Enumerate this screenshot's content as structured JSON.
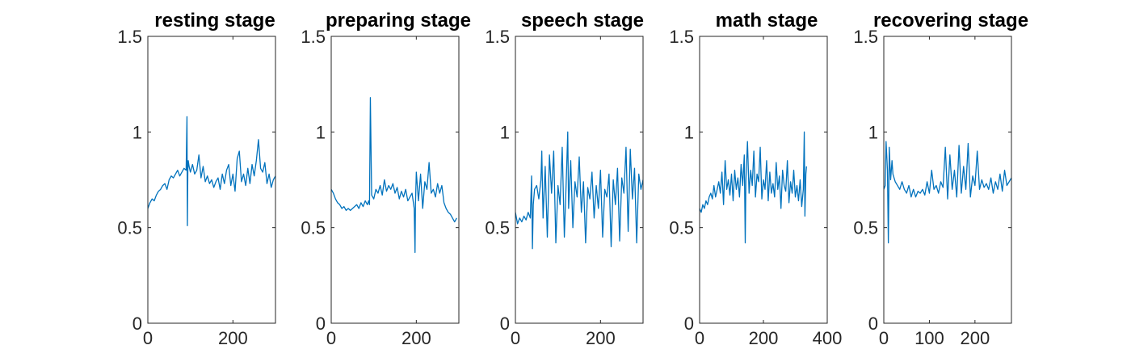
{
  "chart_data": [
    {
      "type": "line",
      "title": "resting stage",
      "xlim": [
        0,
        300
      ],
      "ylim": [
        0,
        1.5
      ],
      "xticks": [
        0,
        200
      ],
      "xtick_labels": [
        "0",
        "200"
      ],
      "yticks": [
        0,
        0.5,
        1,
        1.5
      ],
      "ytick_labels": [
        "0",
        "0.5",
        "1",
        "1.5"
      ],
      "line_color": "#0072BD",
      "series": [
        {
          "x": [
            0,
            5,
            10,
            15,
            20,
            25,
            30,
            35,
            40,
            45,
            50,
            55,
            60,
            65,
            70,
            75,
            80,
            85,
            90,
            92,
            93,
            94,
            95,
            97,
            100,
            105,
            110,
            115,
            120,
            125,
            130,
            135,
            140,
            145,
            150,
            155,
            160,
            165,
            170,
            175,
            180,
            185,
            190,
            195,
            200,
            205,
            210,
            215,
            220,
            225,
            230,
            235,
            240,
            245,
            250,
            255,
            260,
            265,
            270,
            275,
            280,
            285,
            290,
            295,
            300
          ],
          "y": [
            0.6,
            0.63,
            0.65,
            0.64,
            0.67,
            0.69,
            0.7,
            0.72,
            0.73,
            0.7,
            0.75,
            0.77,
            0.76,
            0.78,
            0.8,
            0.77,
            0.79,
            0.81,
            0.8,
            1.08,
            0.51,
            0.8,
            0.85,
            0.82,
            0.79,
            0.83,
            0.78,
            0.8,
            0.88,
            0.76,
            0.82,
            0.74,
            0.77,
            0.73,
            0.75,
            0.71,
            0.74,
            0.76,
            0.7,
            0.78,
            0.73,
            0.8,
            0.83,
            0.72,
            0.78,
            0.69,
            0.86,
            0.9,
            0.74,
            0.78,
            0.72,
            0.81,
            0.73,
            0.83,
            0.77,
            0.85,
            0.96,
            0.81,
            0.79,
            0.84,
            0.73,
            0.78,
            0.71,
            0.75,
            0.77
          ]
        }
      ]
    },
    {
      "type": "line",
      "title": "preparing stage",
      "xlim": [
        0,
        300
      ],
      "ylim": [
        0,
        1.5
      ],
      "xticks": [
        0,
        200
      ],
      "xtick_labels": [
        "0",
        "200"
      ],
      "yticks": [
        0,
        0.5,
        1,
        1.5
      ],
      "ytick_labels": [
        "0",
        "0.5",
        "1",
        "1.5"
      ],
      "line_color": "#0072BD",
      "series": [
        {
          "x": [
            0,
            5,
            10,
            15,
            20,
            25,
            30,
            35,
            40,
            45,
            50,
            55,
            60,
            65,
            70,
            75,
            80,
            85,
            88,
            90,
            92,
            95,
            100,
            105,
            110,
            115,
            120,
            125,
            130,
            135,
            140,
            145,
            150,
            155,
            160,
            165,
            170,
            175,
            180,
            185,
            190,
            195,
            197,
            198,
            200,
            205,
            210,
            215,
            220,
            225,
            230,
            235,
            240,
            245,
            250,
            255,
            260,
            265,
            270,
            275,
            280,
            285,
            290,
            295
          ],
          "y": [
            0.7,
            0.68,
            0.65,
            0.63,
            0.62,
            0.6,
            0.61,
            0.59,
            0.6,
            0.59,
            0.6,
            0.61,
            0.62,
            0.6,
            0.63,
            0.61,
            0.64,
            0.62,
            0.64,
            0.62,
            1.18,
            0.67,
            0.65,
            0.7,
            0.68,
            0.72,
            0.67,
            0.75,
            0.69,
            0.72,
            0.7,
            0.73,
            0.68,
            0.71,
            0.65,
            0.69,
            0.66,
            0.7,
            0.64,
            0.66,
            0.68,
            0.6,
            0.37,
            0.62,
            0.79,
            0.64,
            0.78,
            0.6,
            0.74,
            0.7,
            0.84,
            0.68,
            0.7,
            0.66,
            0.73,
            0.68,
            0.72,
            0.63,
            0.6,
            0.58,
            0.57,
            0.55,
            0.53,
            0.55
          ]
        }
      ]
    },
    {
      "type": "line",
      "title": "speech stage",
      "xlim": [
        0,
        300
      ],
      "ylim": [
        0,
        1.5
      ],
      "xticks": [
        0,
        200
      ],
      "xtick_labels": [
        "0",
        "200"
      ],
      "yticks": [
        0,
        0.5,
        1,
        1.5
      ],
      "ytick_labels": [
        "0",
        "0.5",
        "1",
        "1.5"
      ],
      "line_color": "#0072BD",
      "series": [
        {
          "x": [
            0,
            5,
            10,
            15,
            20,
            25,
            30,
            35,
            38,
            40,
            42,
            45,
            50,
            55,
            60,
            62,
            65,
            70,
            75,
            80,
            85,
            90,
            95,
            100,
            105,
            110,
            115,
            120,
            123,
            125,
            130,
            135,
            140,
            145,
            150,
            155,
            160,
            165,
            170,
            175,
            180,
            185,
            190,
            195,
            200,
            205,
            210,
            215,
            220,
            225,
            230,
            235,
            240,
            245,
            250,
            255,
            260,
            265,
            270,
            275,
            280,
            285,
            290,
            295,
            300
          ],
          "y": [
            0.58,
            0.52,
            0.55,
            0.53,
            0.56,
            0.54,
            0.58,
            0.55,
            0.77,
            0.39,
            0.62,
            0.7,
            0.72,
            0.65,
            0.75,
            0.9,
            0.55,
            0.82,
            0.45,
            0.88,
            0.68,
            0.9,
            0.42,
            0.72,
            0.62,
            0.92,
            0.45,
            0.78,
            1.0,
            0.6,
            0.85,
            0.5,
            0.74,
            0.66,
            0.87,
            0.58,
            0.74,
            0.42,
            0.71,
            0.65,
            0.79,
            0.55,
            0.72,
            0.6,
            0.8,
            0.45,
            0.7,
            0.66,
            0.78,
            0.4,
            0.75,
            0.62,
            0.81,
            0.43,
            0.76,
            0.68,
            0.92,
            0.48,
            0.91,
            0.65,
            0.81,
            0.42,
            0.78,
            0.7,
            0.75
          ]
        }
      ]
    },
    {
      "type": "line",
      "title": "math stage",
      "xlim": [
        0,
        400
      ],
      "ylim": [
        0,
        1.5
      ],
      "xticks": [
        0,
        200,
        400
      ],
      "xtick_labels": [
        "0",
        "200",
        "400"
      ],
      "yticks": [
        0,
        0.5,
        1,
        1.5
      ],
      "ytick_labels": [
        "0",
        "0.5",
        "1",
        "1.5"
      ],
      "line_color": "#0072BD",
      "series": [
        {
          "x": [
            0,
            5,
            10,
            15,
            20,
            25,
            30,
            35,
            40,
            45,
            50,
            55,
            60,
            65,
            70,
            75,
            80,
            85,
            90,
            95,
            100,
            105,
            110,
            115,
            120,
            125,
            130,
            135,
            140,
            143,
            145,
            150,
            155,
            160,
            165,
            170,
            175,
            180,
            185,
            190,
            195,
            200,
            205,
            210,
            215,
            220,
            225,
            230,
            235,
            240,
            245,
            250,
            255,
            260,
            265,
            270,
            275,
            280,
            285,
            290,
            295,
            300,
            305,
            310,
            315,
            320,
            325,
            328,
            330,
            333,
            335
          ],
          "y": [
            0.6,
            0.58,
            0.62,
            0.6,
            0.64,
            0.62,
            0.66,
            0.68,
            0.65,
            0.72,
            0.66,
            0.7,
            0.74,
            0.68,
            0.79,
            0.62,
            0.85,
            0.7,
            0.75,
            0.67,
            0.78,
            0.64,
            0.8,
            0.7,
            0.76,
            0.66,
            0.83,
            0.72,
            0.88,
            0.42,
            0.74,
            0.95,
            0.68,
            0.8,
            0.72,
            0.9,
            0.66,
            0.78,
            0.74,
            0.92,
            0.65,
            0.75,
            0.7,
            0.85,
            0.64,
            0.79,
            0.68,
            0.73,
            0.66,
            0.84,
            0.7,
            0.77,
            0.6,
            0.8,
            0.72,
            0.69,
            0.85,
            0.63,
            0.74,
            0.68,
            0.8,
            0.66,
            0.72,
            0.64,
            0.75,
            0.61,
            0.7,
            1.0,
            0.56,
            0.78,
            0.82
          ]
        }
      ]
    },
    {
      "type": "line",
      "title": "recovering stage",
      "xlim": [
        0,
        280
      ],
      "ylim": [
        0,
        1.5
      ],
      "xticks": [
        0,
        100,
        200
      ],
      "xtick_labels": [
        "0",
        "100",
        "200"
      ],
      "yticks": [
        0,
        0.5,
        1,
        1.5
      ],
      "ytick_labels": [
        "0",
        "0.5",
        "1",
        "1.5"
      ],
      "line_color": "#0072BD",
      "series": [
        {
          "x": [
            0,
            3,
            5,
            8,
            10,
            12,
            15,
            18,
            20,
            25,
            30,
            35,
            40,
            45,
            50,
            55,
            60,
            65,
            70,
            75,
            80,
            85,
            90,
            95,
            100,
            105,
            110,
            115,
            120,
            125,
            130,
            135,
            140,
            145,
            150,
            155,
            160,
            165,
            170,
            175,
            180,
            185,
            190,
            195,
            200,
            205,
            210,
            215,
            220,
            225,
            230,
            235,
            240,
            245,
            250,
            255,
            260,
            265,
            270,
            275,
            280
          ],
          "y": [
            0.7,
            0.72,
            0.95,
            0.8,
            0.42,
            0.92,
            0.75,
            0.85,
            0.78,
            0.74,
            0.72,
            0.7,
            0.74,
            0.7,
            0.68,
            0.72,
            0.66,
            0.7,
            0.66,
            0.69,
            0.68,
            0.7,
            0.67,
            0.74,
            0.68,
            0.8,
            0.7,
            0.72,
            0.68,
            0.74,
            0.71,
            0.92,
            0.65,
            0.88,
            0.7,
            0.8,
            0.66,
            0.93,
            0.68,
            0.82,
            0.7,
            0.94,
            0.66,
            0.77,
            0.72,
            0.9,
            0.7,
            0.75,
            0.71,
            0.73,
            0.7,
            0.76,
            0.68,
            0.74,
            0.7,
            0.78,
            0.69,
            0.8,
            0.72,
            0.74,
            0.76
          ]
        }
      ]
    }
  ]
}
